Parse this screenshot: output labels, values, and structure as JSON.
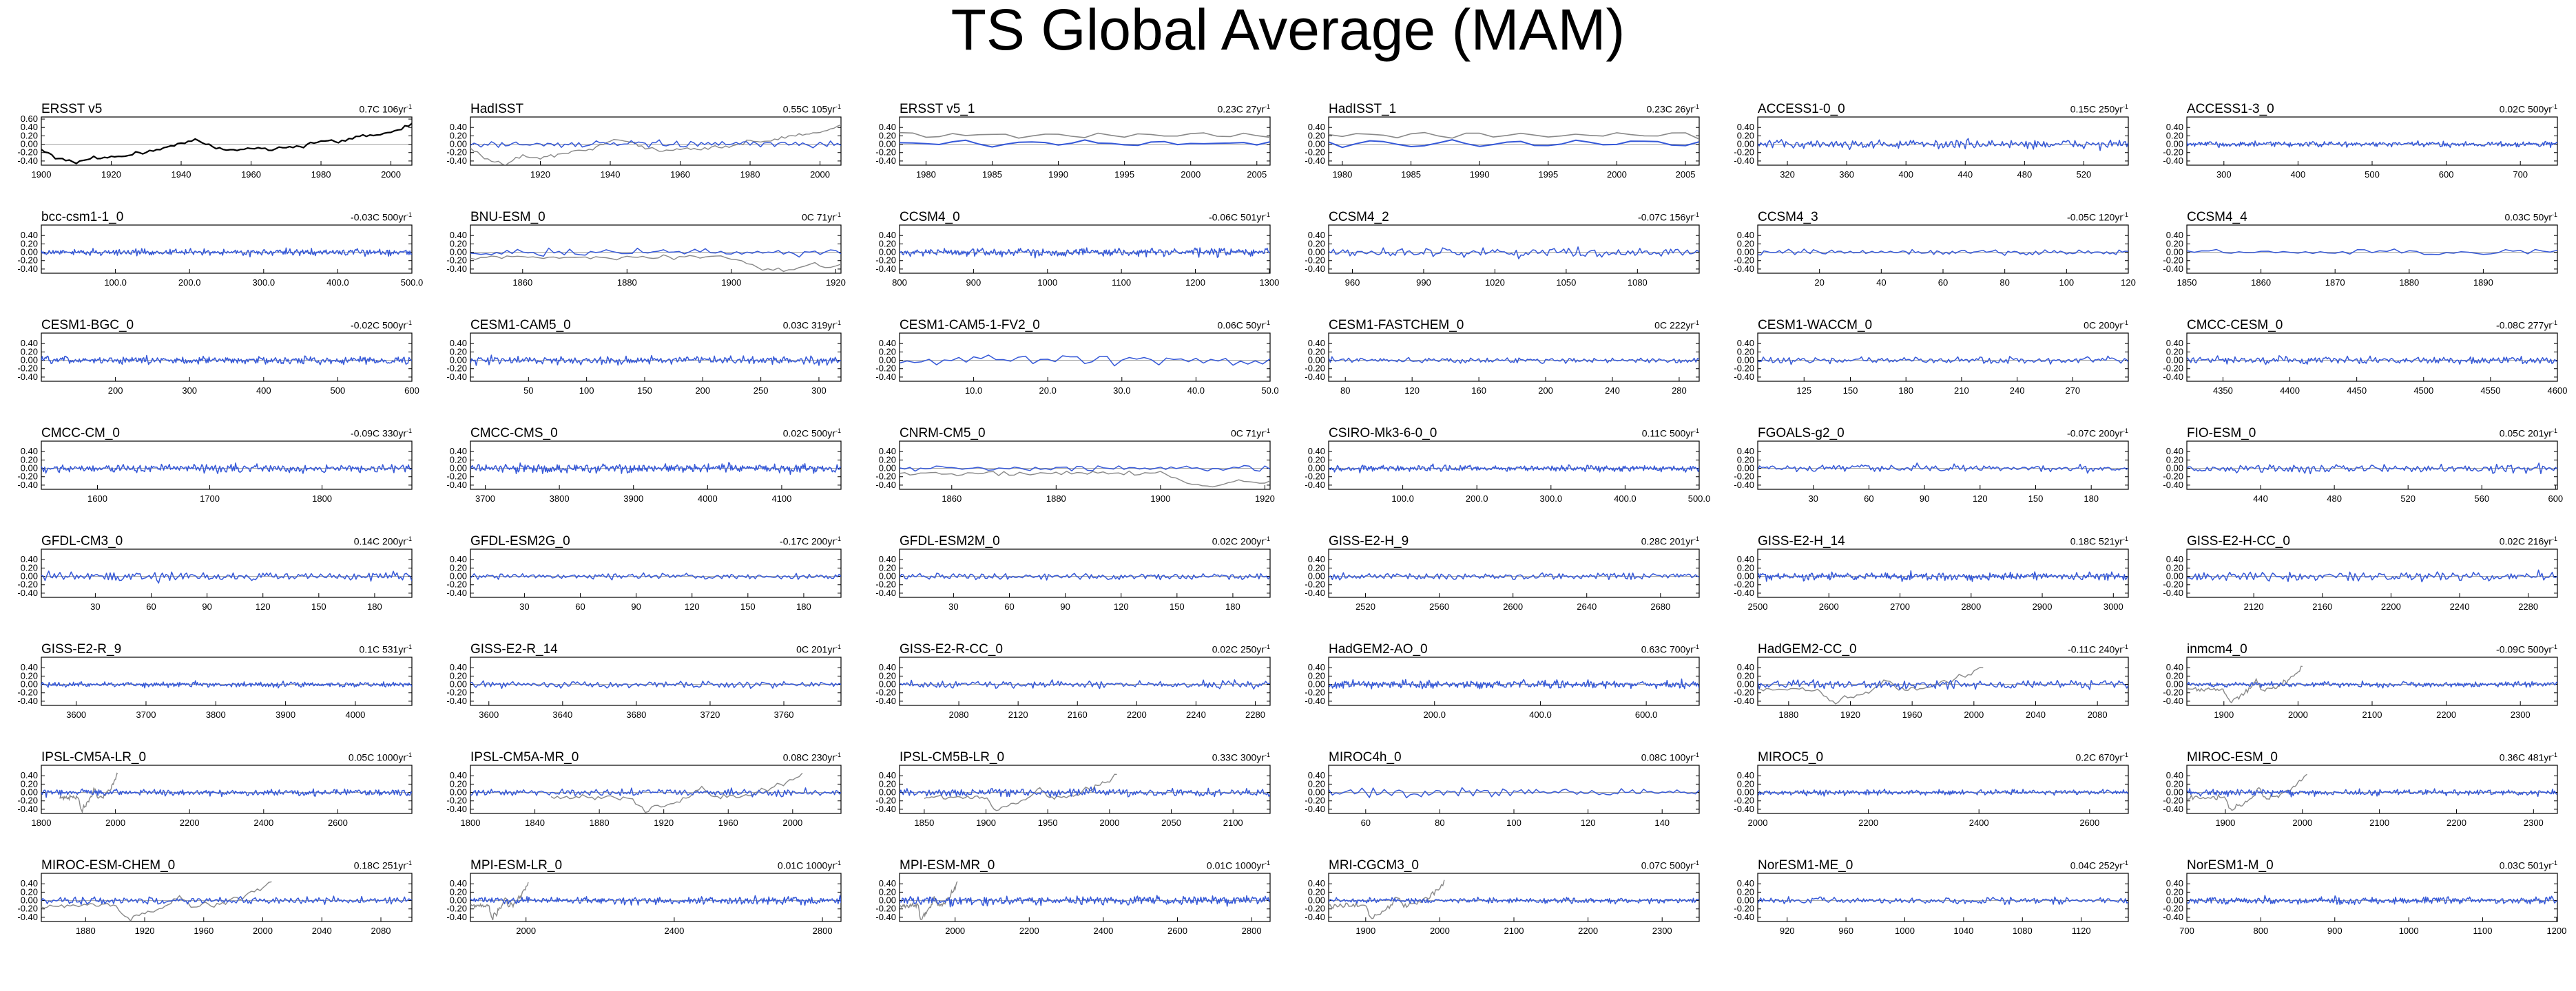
{
  "page": {
    "title": "TS Global Average (MAM)"
  },
  "colors": {
    "observed": "#000000",
    "model": "#3558d8",
    "reference": "#888888",
    "zero_line": "#aaaaaa"
  },
  "chart_data": {
    "type": "line",
    "ylim": [
      -0.5,
      0.65
    ],
    "yticks": [
      -0.4,
      -0.2,
      0,
      0.2,
      0.4
    ],
    "ytick_labels": [
      "-0.40",
      "-0.20",
      "0.00",
      "0.20",
      "0.40"
    ],
    "ytick_labels_first": [
      "-0.40",
      "-0.20",
      "0.00",
      "0.20",
      "0.40",
      "0.60"
    ],
    "panels": [
      {
        "name": "ERSST v5",
        "trend": "0.7C 106yr",
        "line": "black",
        "xrange": [
          1900,
          2006
        ],
        "xticks": [
          1900,
          1920,
          1940,
          1960,
          1980,
          2000
        ],
        "obs": 0
      },
      {
        "name": "HadISST",
        "trend": "0.55C 105yr",
        "line": "blue",
        "xrange": [
          1900,
          2006
        ],
        "xticks": [
          1920,
          1940,
          1960,
          1980,
          2000
        ],
        "obs": 1
      },
      {
        "name": "ERSST v5_1",
        "trend": "0.23C 27yr",
        "line": "blue",
        "xrange": [
          1978,
          2006
        ],
        "xticks": [
          1980,
          1985,
          1990,
          1995,
          2000,
          2005
        ],
        "obs": 2
      },
      {
        "name": "HadISST_1",
        "trend": "0.23C 26yr",
        "line": "blue",
        "xrange": [
          1979,
          2006
        ],
        "xticks": [
          1980,
          1985,
          1990,
          1995,
          2000,
          2005
        ],
        "obs": 2
      },
      {
        "name": "ACCESS1-0_0",
        "trend": "0.15C 250yr",
        "line": "blue",
        "xrange": [
          300,
          550
        ],
        "xticks": [
          320,
          360,
          400,
          440,
          480,
          520
        ]
      },
      {
        "name": "ACCESS1-3_0",
        "trend": "0.02C 500yr",
        "line": "blue",
        "xrange": [
          250,
          750
        ],
        "xticks": [
          300,
          400,
          500,
          600,
          700
        ]
      },
      {
        "name": "bcc-csm1-1_0",
        "trend": "-0.03C 500yr",
        "line": "blue",
        "xrange": [
          0,
          500
        ],
        "xticks": [
          100,
          200,
          300,
          400,
          500
        ],
        "tick_labels": [
          "100.0",
          "200.0",
          "300.0",
          "400.0",
          "500.0"
        ]
      },
      {
        "name": "BNU-ESM_0",
        "trend": "0C 71yr",
        "line": "blue",
        "xrange": [
          1850,
          1921
        ],
        "xticks": [
          1860,
          1880,
          1900,
          1920
        ],
        "obs": 1
      },
      {
        "name": "CCSM4_0",
        "trend": "-0.06C 501yr",
        "line": "blue",
        "xrange": [
          800,
          1301
        ],
        "xticks": [
          800,
          900,
          1000,
          1100,
          1200,
          1300
        ]
      },
      {
        "name": "CCSM4_2",
        "trend": "-0.07C 156yr",
        "line": "blue",
        "xrange": [
          950,
          1106
        ],
        "xticks": [
          960,
          990,
          1020,
          1050,
          1080
        ]
      },
      {
        "name": "CCSM4_3",
        "trend": "-0.05C 120yr",
        "line": "blue",
        "xrange": [
          0,
          120
        ],
        "xticks": [
          20,
          40,
          60,
          80,
          100,
          120
        ]
      },
      {
        "name": "CCSM4_4",
        "trend": "0.03C 50yr",
        "line": "blue",
        "xrange": [
          1850,
          1900
        ],
        "xticks": [
          1850,
          1860,
          1870,
          1880,
          1890
        ]
      },
      {
        "name": "CESM1-BGC_0",
        "trend": "-0.02C 500yr",
        "line": "blue",
        "xrange": [
          100,
          600
        ],
        "xticks": [
          200,
          300,
          400,
          500,
          600
        ]
      },
      {
        "name": "CESM1-CAM5_0",
        "trend": "0.03C 319yr",
        "line": "blue",
        "xrange": [
          0,
          319
        ],
        "xticks": [
          50,
          100,
          150,
          200,
          250,
          300
        ]
      },
      {
        "name": "CESM1-CAM5-1-FV2_0",
        "trend": "0.06C 50yr",
        "line": "blue",
        "xrange": [
          0,
          50
        ],
        "xticks": [
          10,
          20,
          30,
          40,
          50
        ],
        "tick_labels": [
          "10.0",
          "20.0",
          "30.0",
          "40.0",
          "50.0"
        ]
      },
      {
        "name": "CESM1-FASTCHEM_0",
        "trend": "0C 222yr",
        "line": "blue",
        "xrange": [
          70,
          292
        ],
        "xticks": [
          80,
          120,
          160,
          200,
          240,
          280
        ]
      },
      {
        "name": "CESM1-WACCM_0",
        "trend": "0C 200yr",
        "line": "blue",
        "xrange": [
          100,
          300
        ],
        "xticks": [
          125,
          150,
          180,
          210,
          240,
          270
        ]
      },
      {
        "name": "CMCC-CESM_0",
        "trend": "-0.08C 277yr",
        "line": "blue",
        "xrange": [
          4323,
          4600
        ],
        "xticks": [
          4350,
          4400,
          4450,
          4500,
          4550,
          4600
        ]
      },
      {
        "name": "CMCC-CM_0",
        "trend": "-0.09C 330yr",
        "line": "blue",
        "xrange": [
          1550,
          1880
        ],
        "xticks": [
          1600,
          1700,
          1800
        ]
      },
      {
        "name": "CMCC-CMS_0",
        "trend": "0.02C 500yr",
        "line": "blue",
        "xrange": [
          3680,
          4180
        ],
        "xticks": [
          3700,
          3800,
          3900,
          4000,
          4100
        ]
      },
      {
        "name": "CNRM-CM5_0",
        "trend": "0C 71yr",
        "line": "blue",
        "xrange": [
          1850,
          1921
        ],
        "xticks": [
          1860,
          1880,
          1900,
          1920
        ],
        "obs": 1
      },
      {
        "name": "CSIRO-Mk3-6-0_0",
        "trend": "0.11C 500yr",
        "line": "blue",
        "xrange": [
          0,
          500
        ],
        "xticks": [
          100,
          200,
          300,
          400,
          500
        ],
        "tick_labels": [
          "100.0",
          "200.0",
          "300.0",
          "400.0",
          "500.0"
        ]
      },
      {
        "name": "FGOALS-g2_0",
        "trend": "-0.07C 200yr",
        "line": "blue",
        "xrange": [
          0,
          200
        ],
        "xticks": [
          30,
          60,
          90,
          120,
          150,
          180
        ]
      },
      {
        "name": "FIO-ESM_0",
        "trend": "0.05C 201yr",
        "line": "blue",
        "xrange": [
          400,
          601
        ],
        "xticks": [
          440,
          480,
          520,
          560,
          600
        ]
      },
      {
        "name": "GFDL-CM3_0",
        "trend": "0.14C 200yr",
        "line": "blue",
        "xrange": [
          1,
          200
        ],
        "xticks": [
          30,
          60,
          90,
          120,
          150,
          180
        ]
      },
      {
        "name": "GFDL-ESM2G_0",
        "trend": "-0.17C 200yr",
        "line": "blue",
        "xrange": [
          1,
          200
        ],
        "xticks": [
          30,
          60,
          90,
          120,
          150,
          180
        ]
      },
      {
        "name": "GFDL-ESM2M_0",
        "trend": "0.02C 200yr",
        "line": "blue",
        "xrange": [
          1,
          200
        ],
        "xticks": [
          30,
          60,
          90,
          120,
          150,
          180
        ]
      },
      {
        "name": "GISS-E2-H_9",
        "trend": "0.28C 201yr",
        "line": "blue",
        "xrange": [
          2500,
          2701
        ],
        "xticks": [
          2520,
          2560,
          2600,
          2640,
          2680
        ]
      },
      {
        "name": "GISS-E2-H_14",
        "trend": "0.18C 521yr",
        "line": "blue",
        "xrange": [
          2500,
          3021
        ],
        "xticks": [
          2500,
          2600,
          2700,
          2800,
          2900,
          3000
        ]
      },
      {
        "name": "GISS-E2-H-CC_0",
        "trend": "0.02C 216yr",
        "line": "blue",
        "xrange": [
          2081,
          2297
        ],
        "xticks": [
          2120,
          2160,
          2200,
          2240,
          2280
        ]
      },
      {
        "name": "GISS-E2-R_9",
        "trend": "0.1C 531yr",
        "line": "blue",
        "xrange": [
          3550,
          4081
        ],
        "xticks": [
          3600,
          3700,
          3800,
          3900,
          4000
        ]
      },
      {
        "name": "GISS-E2-R_14",
        "trend": "0C 201yr",
        "line": "blue",
        "xrange": [
          3590,
          3791
        ],
        "xticks": [
          3600,
          3640,
          3680,
          3720,
          3760
        ]
      },
      {
        "name": "GISS-E2-R-CC_0",
        "trend": "0.02C 250yr",
        "line": "blue",
        "xrange": [
          2040,
          2290
        ],
        "xticks": [
          2080,
          2120,
          2160,
          2200,
          2240,
          2280
        ]
      },
      {
        "name": "HadGEM2-AO_0",
        "trend": "0.63C 700yr",
        "line": "blue",
        "xrange": [
          0,
          700
        ],
        "xticks": [
          200,
          400,
          600
        ],
        "tick_labels": [
          "200.0",
          "400.0",
          "600.0"
        ]
      },
      {
        "name": "HadGEM2-CC_0",
        "trend": "-0.11C 240yr",
        "line": "blue",
        "xrange": [
          1860,
          2100
        ],
        "xticks": [
          1880,
          1920,
          1960,
          2000,
          2040,
          2080
        ],
        "obs": 3
      },
      {
        "name": "inmcm4_0",
        "trend": "-0.09C 500yr",
        "line": "blue",
        "xrange": [
          1850,
          2350
        ],
        "xticks": [
          1900,
          2000,
          2100,
          2200,
          2300
        ],
        "obs": 3
      },
      {
        "name": "IPSL-CM5A-LR_0",
        "trend": "0.05C 1000yr",
        "line": "blue",
        "xrange": [
          1800,
          2800
        ],
        "xticks": [
          1800,
          2000,
          2200,
          2400,
          2600
        ],
        "obs": 3
      },
      {
        "name": "IPSL-CM5A-MR_0",
        "trend": "0.08C 230yr",
        "line": "blue",
        "xrange": [
          1800,
          2030
        ],
        "xticks": [
          1800,
          1840,
          1880,
          1920,
          1960,
          2000
        ],
        "obs": 3
      },
      {
        "name": "IPSL-CM5B-LR_0",
        "trend": "0.33C 300yr",
        "line": "blue",
        "xrange": [
          1830,
          2130
        ],
        "xticks": [
          1850,
          1900,
          1950,
          2000,
          2050,
          2100
        ],
        "obs": 3
      },
      {
        "name": "MIROC4h_0",
        "trend": "0.08C 100yr",
        "line": "blue",
        "xrange": [
          50,
          150
        ],
        "xticks": [
          60,
          80,
          100,
          120,
          140
        ]
      },
      {
        "name": "MIROC5_0",
        "trend": "0.2C 670yr",
        "line": "blue",
        "xrange": [
          2000,
          2670
        ],
        "xticks": [
          2000,
          2200,
          2400,
          2600
        ]
      },
      {
        "name": "MIROC-ESM_0",
        "trend": "0.36C 481yr",
        "line": "blue",
        "xrange": [
          1850,
          2331
        ],
        "xticks": [
          1900,
          2000,
          2100,
          2200,
          2300
        ],
        "obs": 3
      },
      {
        "name": "MIROC-ESM-CHEM_0",
        "trend": "0.18C 251yr",
        "line": "blue",
        "xrange": [
          1850,
          2101
        ],
        "xticks": [
          1880,
          1920,
          1960,
          2000,
          2040,
          2080
        ],
        "obs": 3
      },
      {
        "name": "MPI-ESM-LR_0",
        "trend": "0.01C 1000yr",
        "line": "blue",
        "xrange": [
          1850,
          2850
        ],
        "xticks": [
          2000,
          2400,
          2800
        ],
        "obs": 3
      },
      {
        "name": "MPI-ESM-MR_0",
        "trend": "0.01C 1000yr",
        "line": "blue",
        "xrange": [
          1850,
          2850
        ],
        "xticks": [
          2000,
          2200,
          2400,
          2600,
          2800
        ],
        "obs": 3
      },
      {
        "name": "MRI-CGCM3_0",
        "trend": "0.07C 500yr",
        "line": "blue",
        "xrange": [
          1850,
          2350
        ],
        "xticks": [
          1900,
          2000,
          2100,
          2200,
          2300
        ],
        "obs": 3
      },
      {
        "name": "NorESM1-ME_0",
        "trend": "0.04C 252yr",
        "line": "blue",
        "xrange": [
          900,
          1152
        ],
        "xticks": [
          920,
          960,
          1000,
          1040,
          1080,
          1120
        ]
      },
      {
        "name": "NorESM1-M_0",
        "trend": "0.03C 501yr",
        "line": "blue",
        "xrange": [
          700,
          1201
        ],
        "xticks": [
          700,
          800,
          900,
          1000,
          1100,
          1200
        ]
      }
    ]
  }
}
